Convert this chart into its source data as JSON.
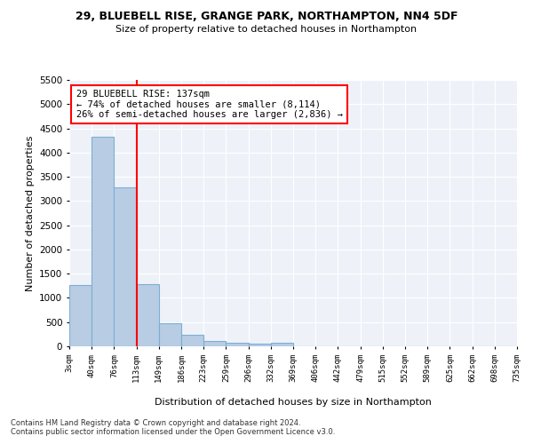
{
  "title_line1": "29, BLUEBELL RISE, GRANGE PARK, NORTHAMPTON, NN4 5DF",
  "title_line2": "Size of property relative to detached houses in Northampton",
  "xlabel": "Distribution of detached houses by size in Northampton",
  "ylabel": "Number of detached properties",
  "bar_values": [
    1270,
    4330,
    3290,
    1290,
    480,
    230,
    105,
    65,
    55,
    70,
    0,
    0,
    0,
    0,
    0,
    0,
    0,
    0,
    0,
    0
  ],
  "bar_labels": [
    "3sqm",
    "40sqm",
    "76sqm",
    "113sqm",
    "149sqm",
    "186sqm",
    "223sqm",
    "259sqm",
    "296sqm",
    "332sqm",
    "369sqm",
    "406sqm",
    "442sqm",
    "479sqm",
    "515sqm",
    "552sqm",
    "589sqm",
    "625sqm",
    "662sqm",
    "698sqm",
    "735sqm"
  ],
  "bar_color": "#b8cce4",
  "bar_edge_color": "#7bafd4",
  "vline_x": 3.0,
  "annotation_text": "29 BLUEBELL RISE: 137sqm\n← 74% of detached houses are smaller (8,114)\n26% of semi-detached houses are larger (2,836) →",
  "annotation_box_color": "white",
  "annotation_box_edge_color": "red",
  "vline_color": "red",
  "ylim": [
    0,
    5500
  ],
  "yticks": [
    0,
    500,
    1000,
    1500,
    2000,
    2500,
    3000,
    3500,
    4000,
    4500,
    5000,
    5500
  ],
  "bg_color": "#eef2f8",
  "footer_line1": "Contains HM Land Registry data © Crown copyright and database right 2024.",
  "footer_line2": "Contains public sector information licensed under the Open Government Licence v3.0."
}
